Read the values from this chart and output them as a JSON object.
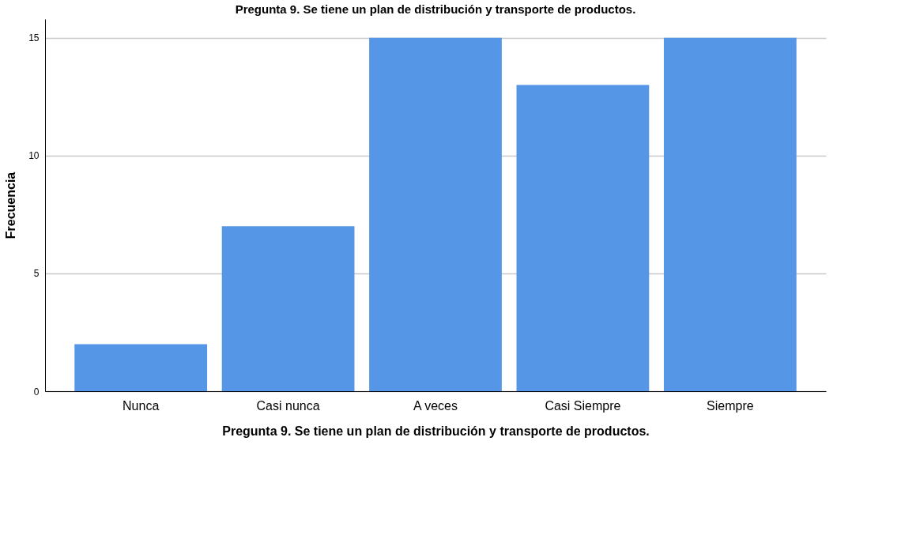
{
  "chart_data": {
    "type": "bar",
    "title": "Pregunta 9. Se tiene un plan de distribución y transporte de productos.",
    "xlabel": "Pregunta 9. Se tiene un plan de distribución y transporte de productos.",
    "ylabel": "Frecuencia",
    "categories": [
      "Nunca",
      "Casi nunca",
      "A veces",
      "Casi Siempre",
      "Siempre"
    ],
    "values": [
      2,
      7,
      15,
      13,
      15
    ],
    "color": "#5596e6",
    "ylim": [
      0,
      15.8
    ],
    "yticks": [
      0,
      5,
      10,
      15
    ],
    "grid": "y"
  }
}
